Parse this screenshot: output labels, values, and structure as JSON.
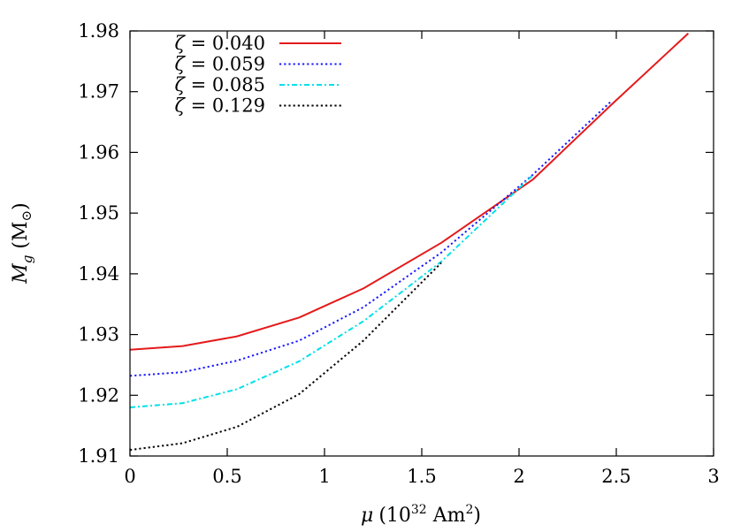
{
  "chart_data": {
    "type": "line",
    "title": "",
    "xlabel": {
      "symbol": "μ",
      "unit_prefix": "(10",
      "unit_exp": "32",
      "unit_mid": " Am",
      "unit_exp2": "2",
      "unit_suffix": ")"
    },
    "ylabel": {
      "symbol": "M",
      "sub": "g",
      "unit": " (M",
      "unit_sub": "⊙",
      "unit_suffix": ")"
    },
    "xlim": [
      0,
      3
    ],
    "ylim": [
      1.91,
      1.98
    ],
    "xticks": [
      0,
      0.5,
      1,
      1.5,
      2,
      2.5,
      3
    ],
    "xtick_labels": [
      "0",
      "0.5",
      "1",
      "1.5",
      "2",
      "2.5",
      "3"
    ],
    "yticks": [
      1.91,
      1.92,
      1.93,
      1.94,
      1.95,
      1.96,
      1.97,
      1.98
    ],
    "ytick_labels": [
      "1.91",
      "1.92",
      "1.93",
      "1.94",
      "1.95",
      "1.96",
      "1.97",
      "1.98"
    ],
    "grid": false,
    "legend_position": "top-left",
    "series": [
      {
        "name": "ζ = 0.040",
        "symbol": "ζ",
        "value_text": " = 0.040",
        "color": "#e41a1c",
        "dash": "solid",
        "x": [
          0,
          0.27,
          0.55,
          0.87,
          1.2,
          1.6,
          2.07,
          2.47,
          2.87
        ],
        "y": [
          1.9275,
          1.9281,
          1.9297,
          1.9328,
          1.9376,
          1.9451,
          1.9555,
          1.9677,
          1.9796
        ]
      },
      {
        "name": "ζ = 0.059",
        "symbol": "ζ",
        "value_text": " = 0.059",
        "color": "#1a1aff",
        "dash": "dotted",
        "x": [
          0,
          0.27,
          0.55,
          0.87,
          1.2,
          1.6,
          2.07,
          2.47
        ],
        "y": [
          1.9232,
          1.9238,
          1.9257,
          1.929,
          1.9345,
          1.9435,
          1.9563,
          1.9683
        ]
      },
      {
        "name": "ζ = 0.085",
        "symbol": "ζ",
        "value_text": " = 0.085",
        "color": "#00e0e8",
        "dash": "dashdot",
        "x": [
          0,
          0.27,
          0.55,
          0.87,
          1.2,
          1.6,
          2.07
        ],
        "y": [
          1.918,
          1.9187,
          1.921,
          1.9256,
          1.9322,
          1.942,
          1.9562
        ]
      },
      {
        "name": "ζ = 0.129",
        "symbol": "ζ",
        "value_text": " = 0.129",
        "color": "#000000",
        "dash": "dotted",
        "x": [
          0,
          0.27,
          0.55,
          0.87,
          1.2,
          1.6
        ],
        "y": [
          1.911,
          1.9121,
          1.9148,
          1.9202,
          1.929,
          1.9418
        ]
      }
    ]
  }
}
